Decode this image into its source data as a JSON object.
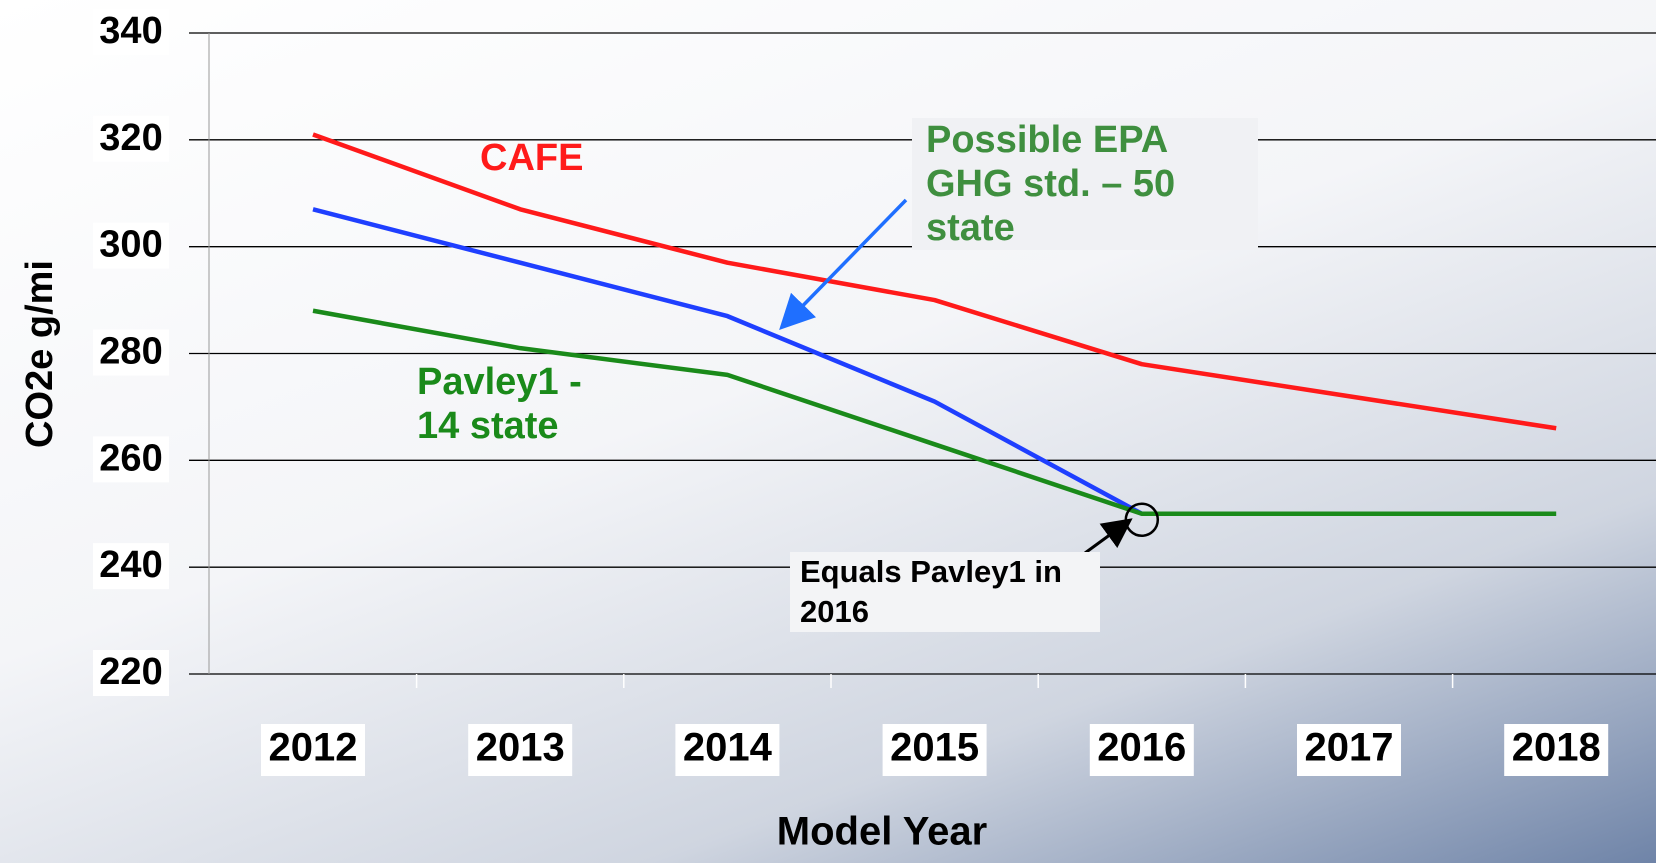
{
  "chart_data": {
    "type": "line",
    "xlabel": "Model Year",
    "ylabel": "CO2e g/mi",
    "categories": [
      "2012",
      "2013",
      "2014",
      "2015",
      "2016",
      "2017",
      "2018"
    ],
    "series": [
      {
        "name": "CAFE",
        "color": "#ff1a1a",
        "values": [
          321,
          307,
          297,
          290,
          278,
          272,
          266
        ]
      },
      {
        "name": "Possible EPA GHG std. – 50 state",
        "color": "#1f3fff",
        "values": [
          307,
          297,
          287,
          271,
          250,
          null,
          null
        ]
      },
      {
        "name": "Pavley1 - 14 state",
        "color": "#1a8a1a",
        "values": [
          288,
          281,
          276,
          263,
          250,
          250,
          250
        ]
      }
    ],
    "annotation": "Equals Pavley1 in 2016",
    "ylim": [
      220,
      340
    ],
    "yticks": [
      220,
      240,
      260,
      280,
      300,
      320,
      340
    ],
    "grid": true
  }
}
